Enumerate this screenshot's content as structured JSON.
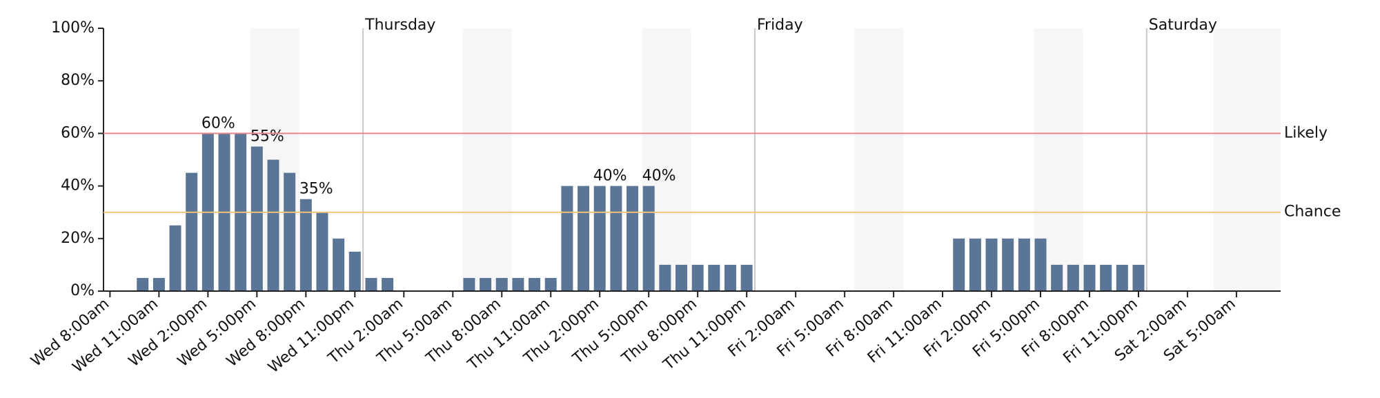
{
  "chart_data": {
    "type": "bar",
    "categories": [
      "Wed 8:00am",
      null,
      null,
      "Wed 11:00am",
      null,
      null,
      "Wed 2:00pm",
      null,
      null,
      "Wed 5:00pm",
      null,
      null,
      "Wed 8:00pm",
      null,
      null,
      "Wed 11:00pm",
      null,
      null,
      "Thu 2:00am",
      null,
      null,
      "Thu 5:00am",
      null,
      null,
      "Thu 8:00am",
      null,
      null,
      "Thu 11:00am",
      null,
      null,
      "Thu 2:00pm",
      null,
      null,
      "Thu 5:00pm",
      null,
      null,
      "Thu 8:00pm",
      null,
      null,
      "Thu 11:00pm",
      null,
      null,
      "Fri 2:00am",
      null,
      null,
      "Fri 5:00am",
      null,
      null,
      "Fri 8:00am",
      null,
      null,
      "Fri 11:00am",
      null,
      null,
      "Fri 2:00pm",
      null,
      null,
      "Fri 5:00pm",
      null,
      null,
      "Fri 8:00pm",
      null,
      null,
      "Fri 11:00pm",
      null,
      null,
      "Sat 2:00am",
      null,
      null,
      "Sat 5:00am",
      null,
      null
    ],
    "values": [
      0,
      0,
      5,
      5,
      25,
      45,
      60,
      60,
      60,
      55,
      50,
      45,
      35,
      30,
      20,
      15,
      5,
      5,
      0,
      0,
      0,
      0,
      5,
      5,
      5,
      5,
      5,
      5,
      40,
      40,
      40,
      40,
      40,
      40,
      10,
      10,
      10,
      10,
      10,
      10,
      0,
      0,
      0,
      0,
      0,
      0,
      0,
      0,
      0,
      0,
      0,
      0,
      20,
      20,
      20,
      20,
      20,
      20,
      10,
      10,
      10,
      10,
      10,
      10,
      0,
      0,
      0,
      0,
      0,
      0,
      0,
      0
    ],
    "value_labels": [
      null,
      null,
      null,
      null,
      null,
      null,
      "60%",
      null,
      null,
      "55%",
      null,
      null,
      "35%",
      null,
      null,
      null,
      null,
      null,
      null,
      null,
      null,
      null,
      null,
      null,
      null,
      null,
      null,
      null,
      null,
      null,
      "40%",
      null,
      null,
      "40%",
      null,
      null,
      null,
      null,
      null,
      null,
      null,
      null,
      null,
      null,
      null,
      null,
      null,
      null,
      null,
      null,
      null,
      null,
      null,
      null,
      null,
      null,
      null,
      null,
      null,
      null,
      null,
      null,
      null,
      null,
      null,
      null,
      null,
      null,
      null,
      null,
      null,
      null
    ],
    "color": "#5b7596",
    "ylim": [
      0,
      100
    ],
    "yticks": [
      {
        "value": 0,
        "label": "0%"
      },
      {
        "value": 20,
        "label": "20%"
      },
      {
        "value": 40,
        "label": "40%"
      },
      {
        "value": 60,
        "label": "60%"
      },
      {
        "value": 80,
        "label": "80%"
      },
      {
        "value": 100,
        "label": "100%"
      }
    ],
    "day_labels": [
      "Thursday",
      "Friday",
      "Saturday"
    ],
    "thresholds": [
      {
        "label": "Likely",
        "value": 60,
        "color": "#e8868e",
        "text_color": "#3a0c12"
      },
      {
        "label": "Chance",
        "value": 30,
        "color": "#f2c47a",
        "text_color": "#3a2608"
      }
    ]
  }
}
